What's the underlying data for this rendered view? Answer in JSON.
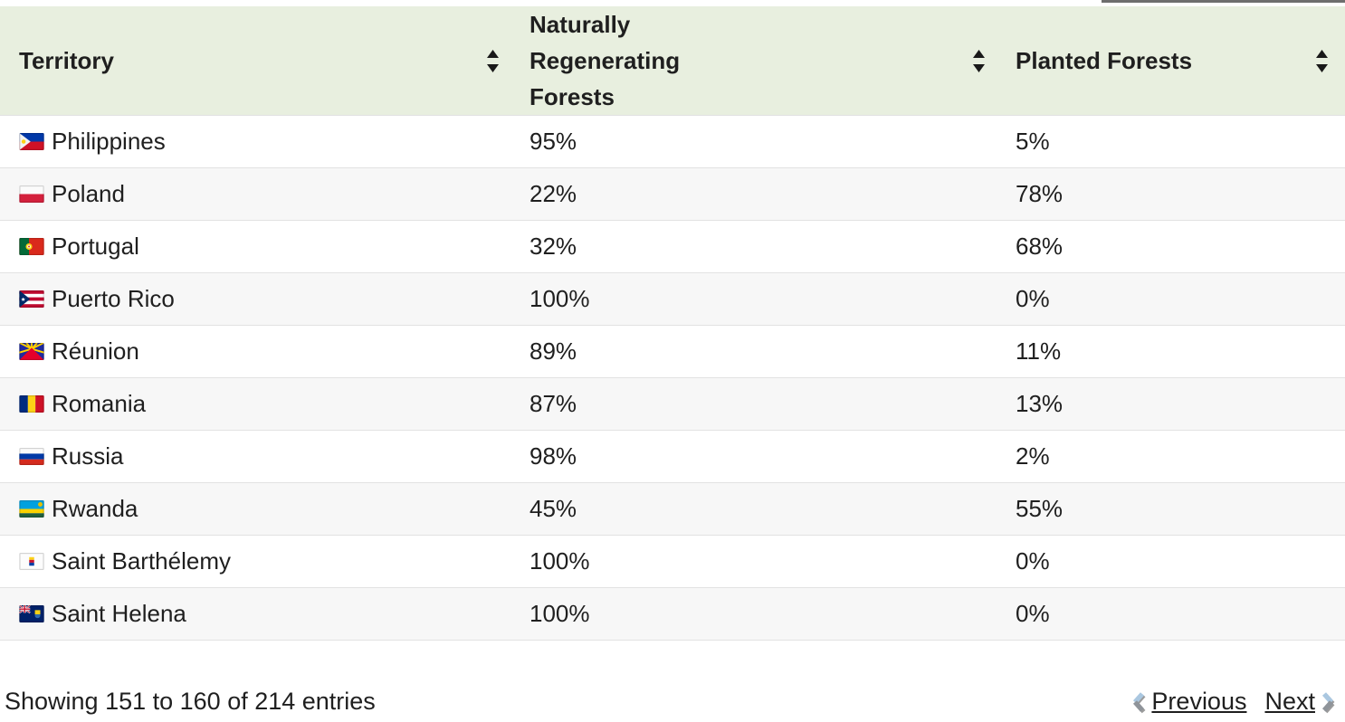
{
  "search": {
    "value": ""
  },
  "colors": {
    "header_bg": "#e8efdf",
    "row_bg": "#ffffff",
    "row_alt_bg": "#f7f7f7",
    "divider": "#e2e2e2",
    "text": "#1f1f1f",
    "search_border": "#6e6e6e",
    "chevron_blue": "#aac7e0",
    "chevron_gray": "#8f949a"
  },
  "table": {
    "columns": [
      {
        "id": "territory",
        "label": "Territory",
        "sortable": true
      },
      {
        "id": "naturally_regenerating",
        "label": "Naturally Regenerating Forests",
        "sortable": true
      },
      {
        "id": "planted",
        "label": "Planted Forests",
        "sortable": true
      }
    ],
    "rows": [
      {
        "flag": "philippines",
        "territory": "Philippines",
        "naturally_regenerating": "95%",
        "planted": "5%"
      },
      {
        "flag": "poland",
        "territory": "Poland",
        "naturally_regenerating": "22%",
        "planted": "78%"
      },
      {
        "flag": "portugal",
        "territory": "Portugal",
        "naturally_regenerating": "32%",
        "planted": "68%"
      },
      {
        "flag": "puerto-rico",
        "territory": "Puerto Rico",
        "naturally_regenerating": "100%",
        "planted": "0%"
      },
      {
        "flag": "reunion",
        "territory": "Réunion",
        "naturally_regenerating": "89%",
        "planted": "11%"
      },
      {
        "flag": "romania",
        "territory": "Romania",
        "naturally_regenerating": "87%",
        "planted": "13%"
      },
      {
        "flag": "russia",
        "territory": "Russia",
        "naturally_regenerating": "98%",
        "planted": "2%"
      },
      {
        "flag": "rwanda",
        "territory": "Rwanda",
        "naturally_regenerating": "45%",
        "planted": "55%"
      },
      {
        "flag": "saint-barthelemy",
        "territory": "Saint Barthélemy",
        "naturally_regenerating": "100%",
        "planted": "0%"
      },
      {
        "flag": "saint-helena",
        "territory": "Saint Helena",
        "naturally_regenerating": "100%",
        "planted": "0%"
      }
    ]
  },
  "pagination": {
    "showing_text": "Showing 151 to 160 of 214 entries",
    "previous_label": "Previous",
    "next_label": "Next"
  }
}
